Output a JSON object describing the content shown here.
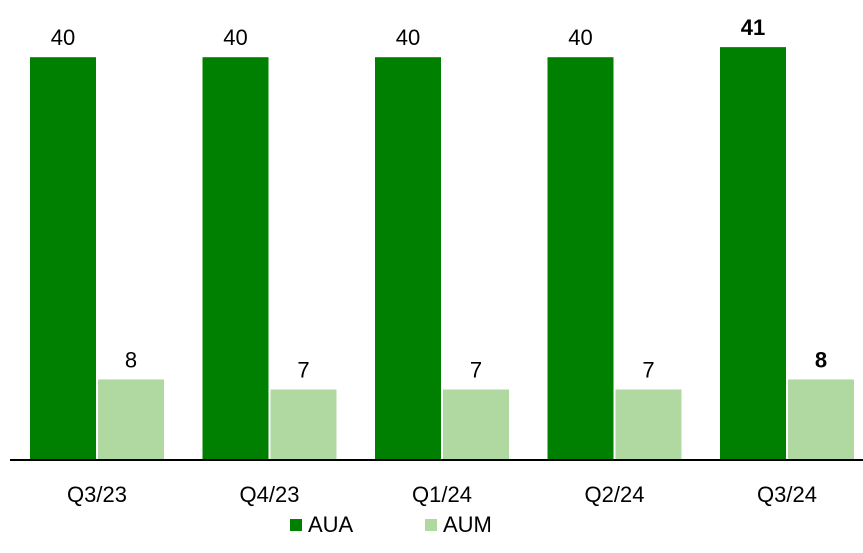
{
  "chart_data": {
    "type": "bar",
    "categories": [
      "Q3/23",
      "Q4/23",
      "Q1/24",
      "Q2/24",
      "Q3/24"
    ],
    "series": [
      {
        "name": "AUA",
        "color": "#008000",
        "values": [
          40,
          40,
          40,
          40,
          41
        ],
        "labels": [
          "40",
          "40",
          "40",
          "40",
          "41"
        ]
      },
      {
        "name": "AUM",
        "color": "#afd9a0",
        "values": [
          8,
          7,
          7,
          7,
          8
        ],
        "labels": [
          "8",
          "7",
          "7",
          "7",
          "8"
        ]
      }
    ],
    "bold_category": "Q3/24",
    "ylim": [
      0,
      41
    ],
    "grid": false,
    "legend_position": "bottom"
  }
}
